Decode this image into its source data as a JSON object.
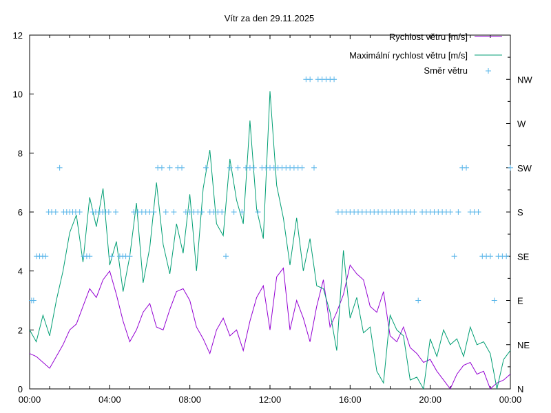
{
  "chart_data": {
    "type": "line",
    "title": "Vítr za den 29.11.2025",
    "xlabel": "",
    "ylabel": "",
    "xlim_hours": [
      0,
      24
    ],
    "ylim": [
      0,
      12
    ],
    "x_ticks": [
      "00:00",
      "04:00",
      "08:00",
      "12:00",
      "16:00",
      "20:00",
      "00:00"
    ],
    "y_ticks": [
      "0",
      "2",
      "4",
      "6",
      "8",
      "10",
      "12"
    ],
    "y2_ticks": [
      "N",
      "NE",
      "E",
      "SE",
      "S",
      "SW",
      "W",
      "NW"
    ],
    "legend_position": "top-right",
    "grid": false,
    "x_hours_step": 0.3333,
    "series": [
      {
        "name": "Rychlost větru [m/s]",
        "color": "#9400d3",
        "kind": "line",
        "values": [
          1.2,
          1.1,
          0.9,
          0.7,
          1.1,
          1.5,
          2.0,
          2.2,
          2.8,
          3.4,
          3.1,
          3.7,
          4.0,
          3.2,
          2.3,
          1.6,
          2.0,
          2.6,
          2.9,
          2.1,
          2.0,
          2.7,
          3.3,
          3.4,
          3.0,
          2.1,
          1.7,
          1.2,
          2.0,
          2.4,
          1.8,
          2.0,
          1.3,
          2.3,
          3.1,
          3.5,
          2.0,
          3.8,
          4.1,
          2.0,
          3.0,
          2.4,
          1.6,
          2.8,
          3.7,
          2.1,
          2.6,
          3.2,
          4.2,
          3.9,
          3.7,
          2.8,
          2.6,
          3.3,
          1.8,
          1.6,
          2.1,
          1.4,
          1.2,
          0.9,
          1.0,
          0.6,
          0.3,
          0.0,
          0.5,
          0.8,
          0.9,
          0.5,
          0.6,
          0.0,
          0.2,
          0.3,
          0.5
        ]
      },
      {
        "name": "Maximální rychlost větru [m/s]",
        "color": "#009e73",
        "kind": "line",
        "values": [
          2.0,
          1.6,
          2.5,
          1.8,
          3.0,
          4.0,
          5.3,
          5.9,
          4.3,
          6.5,
          5.5,
          6.8,
          4.2,
          5.0,
          3.3,
          4.5,
          6.3,
          3.6,
          4.8,
          7.0,
          4.9,
          3.9,
          5.6,
          4.6,
          6.6,
          4.0,
          6.8,
          8.1,
          5.6,
          5.2,
          7.8,
          6.4,
          5.6,
          9.1,
          6.1,
          5.1,
          10.1,
          6.9,
          5.8,
          4.2,
          5.8,
          4.0,
          5.1,
          3.5,
          3.4,
          2.6,
          1.3,
          4.7,
          2.4,
          3.1,
          1.9,
          2.1,
          0.6,
          0.2,
          2.5,
          2.0,
          1.8,
          0.3,
          0.4,
          0.0,
          1.7,
          1.1,
          2.0,
          1.5,
          1.7,
          1.1,
          2.1,
          1.5,
          1.6,
          1.2,
          0.0,
          1.0,
          1.3
        ]
      },
      {
        "name": "Směr větru",
        "color": "#56b4e9",
        "kind": "points",
        "x_hours": [
          0.1,
          0.2,
          0.35,
          0.5,
          0.65,
          0.8,
          0.95,
          1.1,
          1.3,
          1.5,
          1.7,
          1.85,
          2.0,
          2.15,
          2.3,
          2.5,
          2.7,
          2.85,
          3.0,
          3.15,
          3.3,
          3.5,
          3.65,
          3.8,
          3.95,
          4.1,
          4.3,
          4.5,
          4.65,
          4.8,
          5.0,
          5.2,
          5.4,
          5.6,
          5.8,
          6.0,
          6.2,
          6.4,
          6.6,
          6.8,
          7.0,
          7.2,
          7.4,
          7.6,
          7.8,
          8.0,
          8.2,
          8.4,
          8.6,
          8.8,
          9.0,
          9.2,
          9.4,
          9.6,
          9.8,
          10.0,
          10.2,
          10.4,
          10.6,
          10.8,
          11.0,
          11.2,
          11.4,
          11.6,
          11.8,
          12.0,
          12.2,
          12.4,
          12.6,
          12.8,
          13.0,
          13.2,
          13.4,
          13.6,
          13.8,
          14.0,
          14.2,
          14.4,
          14.6,
          14.8,
          15.0,
          15.2,
          15.4,
          15.6,
          15.8,
          16.0,
          16.2,
          16.4,
          16.6,
          16.8,
          17.0,
          17.2,
          17.4,
          17.6,
          17.8,
          18.0,
          18.2,
          18.4,
          18.6,
          18.8,
          19.0,
          19.2,
          19.4,
          19.6,
          19.8,
          20.0,
          20.2,
          20.4,
          20.6,
          20.8,
          21.0,
          21.2,
          21.4,
          21.6,
          21.8,
          22.0,
          22.2,
          22.4,
          22.6,
          22.8,
          23.0,
          23.2,
          23.4,
          23.6,
          23.8,
          24.0
        ],
        "values": [
          2,
          2,
          3,
          3,
          3,
          3,
          4,
          4,
          4,
          5,
          4,
          4,
          4,
          4,
          4,
          4,
          3,
          3,
          3,
          4,
          4,
          4,
          4,
          4,
          4,
          3,
          4,
          3,
          3,
          3,
          3,
          4,
          4,
          4,
          4,
          4,
          4,
          5,
          5,
          4,
          5,
          4,
          5,
          5,
          4,
          4,
          4,
          4,
          4,
          5,
          4,
          4,
          4,
          4,
          3,
          5,
          4,
          5,
          4,
          5,
          5,
          5,
          4,
          5,
          5,
          5,
          5,
          5,
          5,
          5,
          5,
          5,
          5,
          5,
          7,
          7,
          5,
          7,
          7,
          7,
          7,
          7,
          4,
          4,
          4,
          4,
          4,
          4,
          4,
          4,
          4,
          4,
          4,
          4,
          4,
          4,
          4,
          4,
          4,
          4,
          4,
          4,
          2,
          4,
          4,
          4,
          4,
          4,
          4,
          4,
          4,
          3,
          4,
          5,
          5,
          4,
          4,
          4,
          3,
          3,
          3,
          2,
          3,
          3,
          3,
          5
        ]
      }
    ]
  }
}
